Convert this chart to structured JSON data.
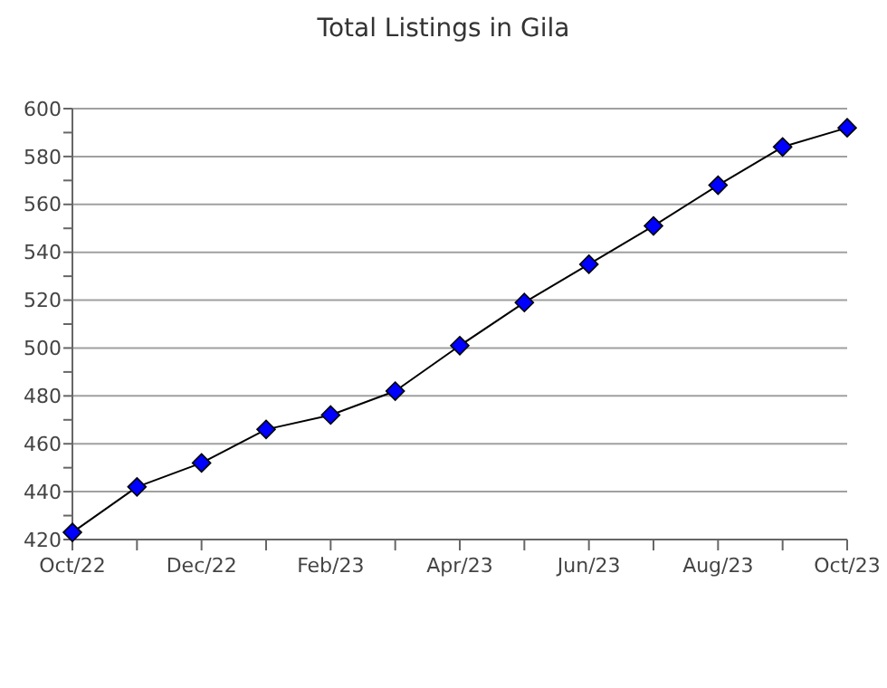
{
  "chart_data": {
    "type": "line",
    "title": "Total Listings in Gila",
    "categories": [
      "Oct/22",
      null,
      "Dec/22",
      null,
      "Feb/23",
      null,
      "Apr/23",
      null,
      "Jun/23",
      null,
      "Aug/23",
      null,
      "Oct/23"
    ],
    "series": [
      {
        "color": "#0000ff",
        "values": [
          423,
          442,
          452,
          466,
          472,
          482,
          501,
          519,
          535,
          551,
          568,
          584,
          592
        ]
      }
    ],
    "ylim": [
      420,
      600
    ],
    "yticks": [
      420,
      {
        "value": 430,
        "label": null
      },
      440,
      {
        "value": 450,
        "label": null
      },
      460,
      {
        "value": 470,
        "label": null
      },
      480,
      {
        "value": 490,
        "label": null
      },
      500,
      {
        "value": 510,
        "label": null
      },
      520,
      {
        "value": 530,
        "label": null
      },
      540,
      {
        "value": 550,
        "label": null
      },
      560,
      {
        "value": 570,
        "label": null
      },
      580,
      {
        "value": 590,
        "label": null
      },
      600
    ],
    "grid": "y",
    "marker": "diamond",
    "line_style": "solid"
  }
}
